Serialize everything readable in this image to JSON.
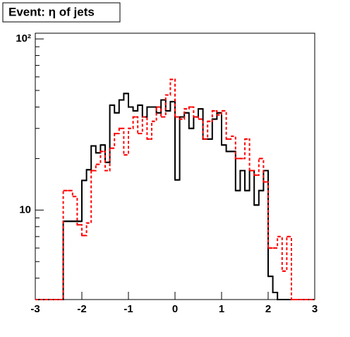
{
  "chart_data": {
    "type": "histogram",
    "title": "Event: η of jets",
    "bins": [
      -3.0,
      -2.9,
      -2.8,
      -2.7,
      -2.6,
      -2.5,
      -2.4,
      -2.3,
      -2.2,
      -2.1,
      -2.0,
      -1.9,
      -1.8,
      -1.7,
      -1.6,
      -1.5,
      -1.4,
      -1.3,
      -1.2,
      -1.1,
      -1.0,
      -0.9,
      -0.8,
      -0.7,
      -0.6,
      -0.5,
      -0.4,
      -0.3,
      -0.2,
      -0.1,
      0.0,
      0.1,
      0.2,
      0.3,
      0.4,
      0.5,
      0.6,
      0.7,
      0.8,
      0.9,
      1.0,
      1.1,
      1.2,
      1.3,
      1.4,
      1.5,
      1.6,
      1.7,
      1.8,
      1.9,
      2.0,
      2.1,
      2.2,
      2.3,
      2.4,
      2.5,
      2.6,
      2.7,
      2.8,
      2.9,
      3.0
    ],
    "series": [
      {
        "color": "#000000",
        "dash": "none",
        "values": [
          0,
          0,
          0,
          0,
          0,
          0,
          8.6,
          8.6,
          8.6,
          8.6,
          14.9,
          17.2,
          23.7,
          21.6,
          24,
          19,
          41,
          37,
          44,
          48,
          40,
          38,
          41,
          35,
          40,
          40,
          37,
          44,
          38,
          43,
          15,
          35,
          37,
          30,
          35,
          39,
          26,
          26,
          34,
          37,
          24,
          22,
          22,
          13,
          17,
          13,
          17,
          10.7,
          13,
          17,
          4.1,
          3.3,
          0,
          0,
          0,
          0,
          0,
          0,
          0,
          0
        ]
      },
      {
        "color": "#ff0000",
        "dash": "dashed",
        "values": [
          0,
          0,
          0,
          0,
          0,
          0,
          13,
          13,
          12,
          8.2,
          7.1,
          8.4,
          17,
          18.5,
          22,
          17,
          23,
          28,
          30,
          21,
          30,
          35,
          28,
          35,
          26,
          33,
          40,
          35,
          47,
          58,
          35,
          34,
          39,
          40,
          35,
          34,
          26,
          33,
          38,
          36,
          38,
          26,
          27,
          20,
          20,
          26,
          17,
          16,
          20,
          14.6,
          6,
          6,
          7,
          4.4,
          7,
          0,
          0,
          0,
          0,
          0
        ]
      }
    ],
    "xlim": [
      -3,
      3
    ],
    "xticks": [
      -3,
      -2,
      -1,
      0,
      1,
      2,
      3
    ],
    "ylim": [
      3,
      108
    ],
    "log_y": true,
    "yticks": [
      10,
      {
        "value": 100,
        "label": "10²"
      }
    ],
    "yminorticks": [
      3,
      4,
      5,
      6,
      7,
      8,
      9,
      20,
      30,
      40,
      50,
      60,
      70,
      80,
      90
    ]
  }
}
